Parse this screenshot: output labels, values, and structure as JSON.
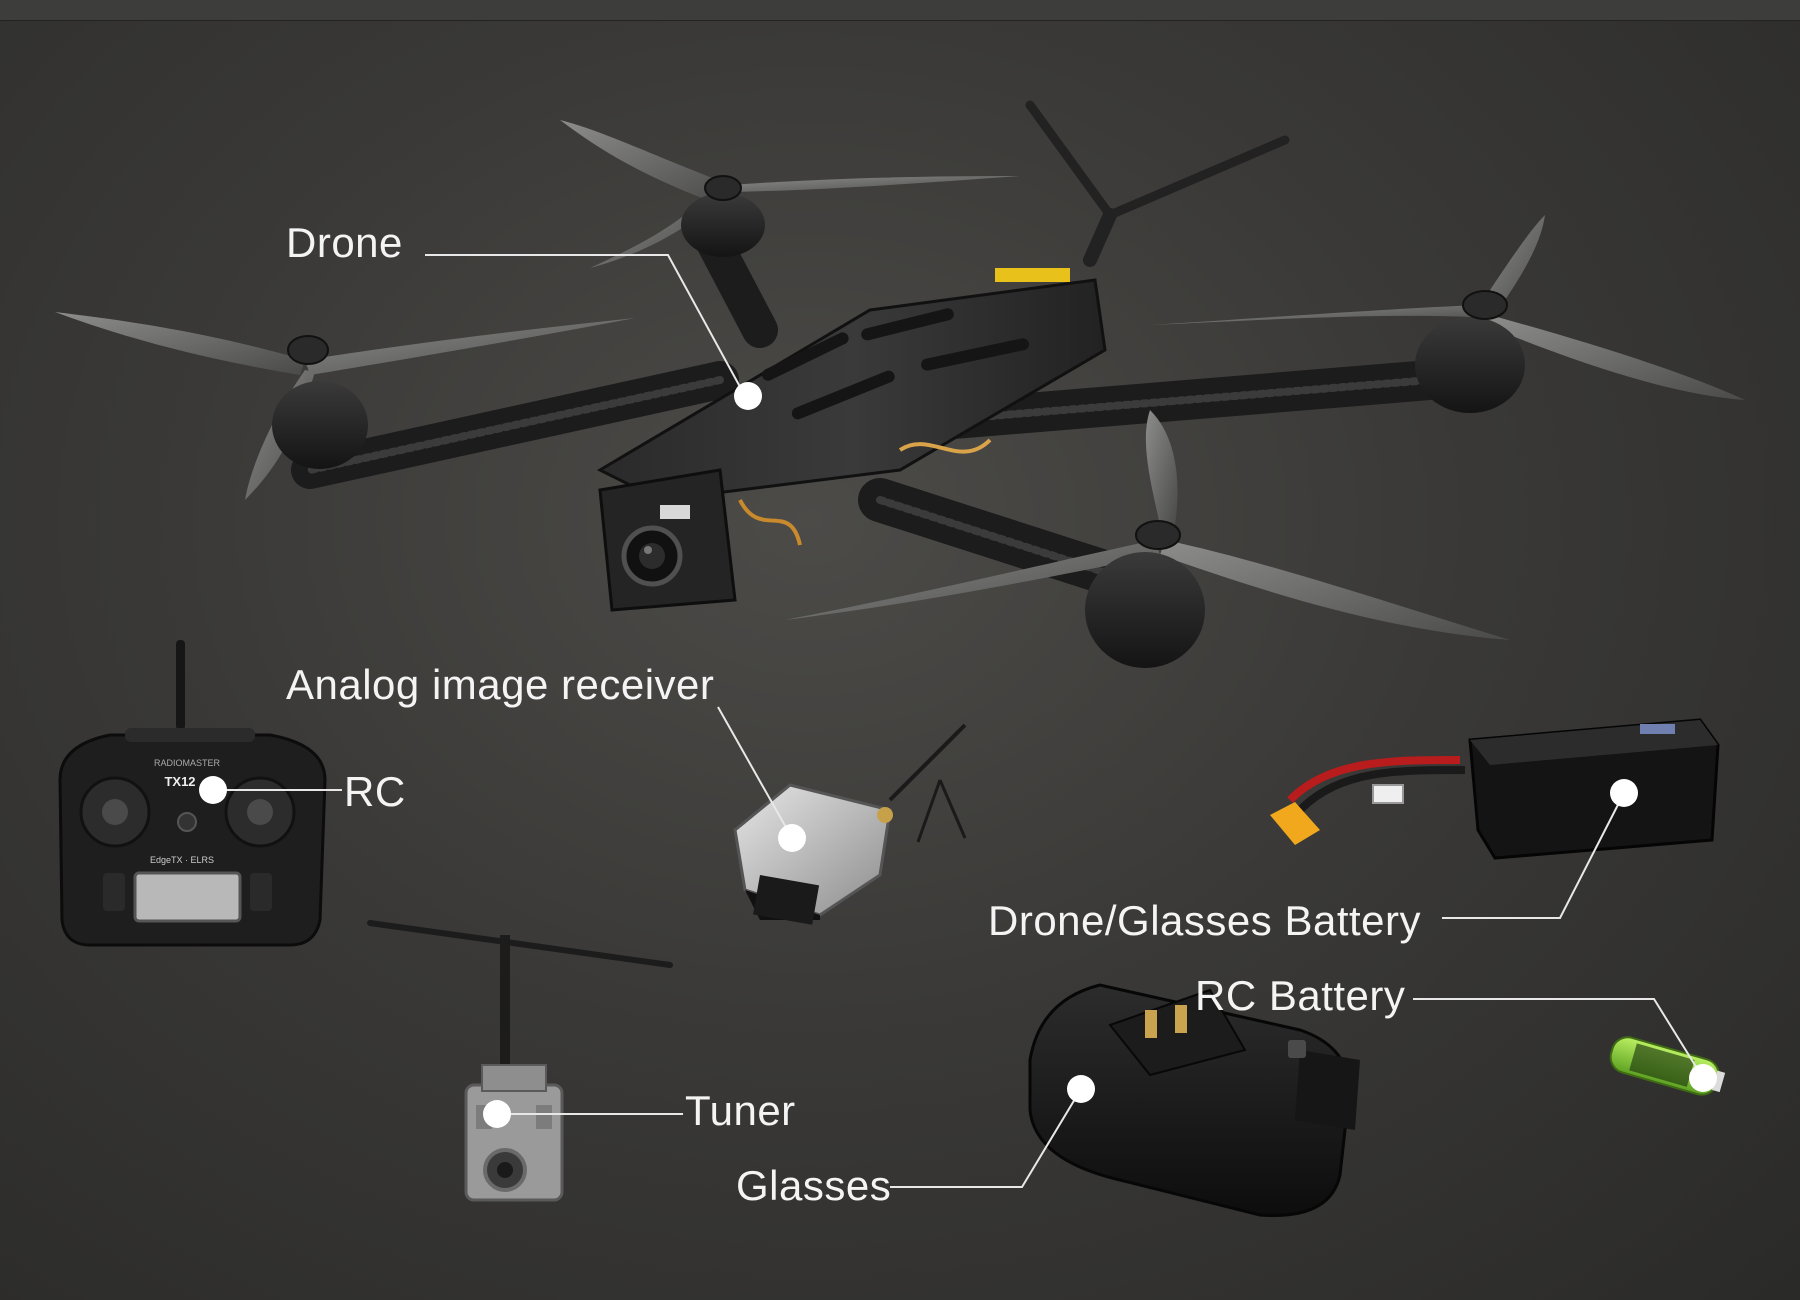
{
  "labels": {
    "drone": "Drone",
    "analog_receiver": "Analog image receiver",
    "rc": "RC",
    "drone_glasses_battery": "Drone/Glasses Battery",
    "rc_battery": "RC Battery",
    "tuner": "Tuner",
    "glasses": "Glasses"
  },
  "device_text": {
    "rc_brand": "RADIOMASTER",
    "rc_model": "TX12",
    "rc_firmware": "EdgeTX · ELRS"
  },
  "colors": {
    "background": "#3a3937",
    "label_text": "#f4f4f4",
    "leader_line": "#e8e8e8",
    "marker": "#ffffff",
    "battery_body": "#151515",
    "rc_battery_green": "#8cd13a",
    "tuner_grey": "#9a9a9a"
  },
  "icons": {
    "marker": "white-dot-marker-icon",
    "drone": "fpv-quadcopter-icon",
    "rc": "radio-controller-icon",
    "analog_receiver": "video-receiver-icon",
    "battery": "lipo-battery-icon",
    "rc_battery": "cylindrical-cell-icon",
    "tuner": "elrs-module-icon",
    "glasses": "fpv-goggles-icon"
  }
}
